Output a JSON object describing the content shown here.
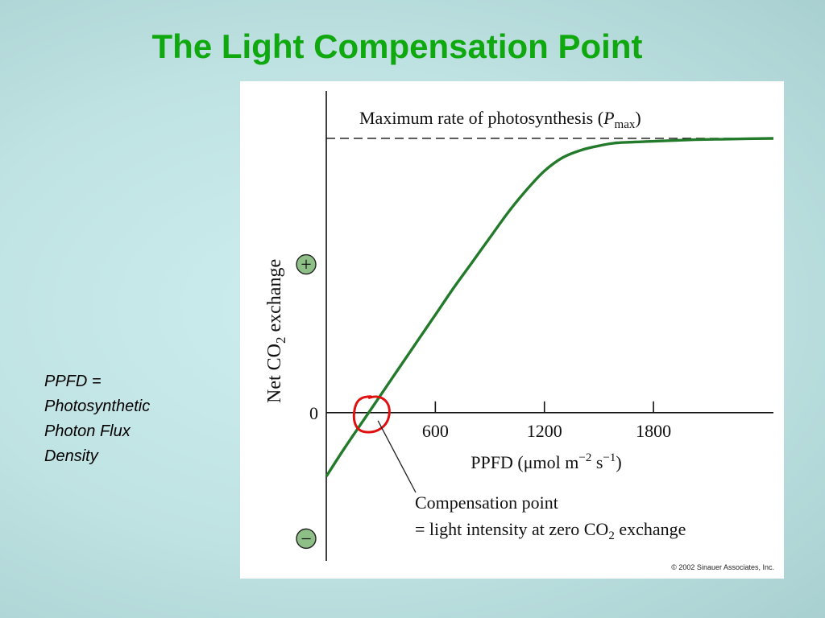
{
  "slide": {
    "title": "The Light Compensation Point",
    "note_lines": [
      "PPFD =",
      "Photosynthetic",
      "Photon Flux",
      "Density"
    ]
  },
  "colors": {
    "title": "#0fa80f",
    "curve": "#237a2a",
    "highlight": "#e01010",
    "sign_fill": "#8dbf86"
  },
  "chart_data": {
    "type": "line",
    "title": "",
    "xlabel": {
      "base": "PPFD (μmol m",
      "exp1": "−2",
      "mid": " s",
      "exp2": "−1",
      "close": ")"
    },
    "ylabel": {
      "pre": "Net CO",
      "sub": "2",
      "post": " exchange"
    },
    "x_ticks": [
      {
        "value": 600,
        "label": "600"
      },
      {
        "value": 1200,
        "label": "1200"
      },
      {
        "value": 1800,
        "label": "1800"
      }
    ],
    "y_zero_label": "0",
    "y_sign_labels": {
      "positive": "+",
      "negative": "−"
    },
    "xlim": [
      0,
      2460
    ],
    "ylim": [
      -1,
      2.17
    ],
    "pmax": {
      "value": 1.85,
      "label_pre": "Maximum rate of photosynthesis (",
      "label_p": "P",
      "label_sub": "max",
      "label_post": ")"
    },
    "compensation_point": {
      "x": 240,
      "y": 0,
      "label_line1": "Compensation point",
      "label_line2_pre": "= light intensity at zero CO",
      "label_line2_sub": "2",
      "label_line2_post": " exchange"
    },
    "series": [
      {
        "x": [
          0,
          100,
          200,
          300,
          400,
          500,
          600,
          700,
          800,
          900,
          1000,
          1100,
          1200,
          1300,
          1400,
          1500,
          1600,
          1800,
          2000,
          2200,
          2460
        ],
        "values": [
          -0.43,
          -0.24,
          -0.06,
          0.12,
          0.3,
          0.48,
          0.66,
          0.84,
          1.01,
          1.18,
          1.35,
          1.5,
          1.63,
          1.72,
          1.77,
          1.8,
          1.82,
          1.83,
          1.84,
          1.845,
          1.85
        ]
      }
    ],
    "grid": false,
    "legend": "none"
  },
  "copyright": "© 2002 Sinauer Associates, Inc."
}
